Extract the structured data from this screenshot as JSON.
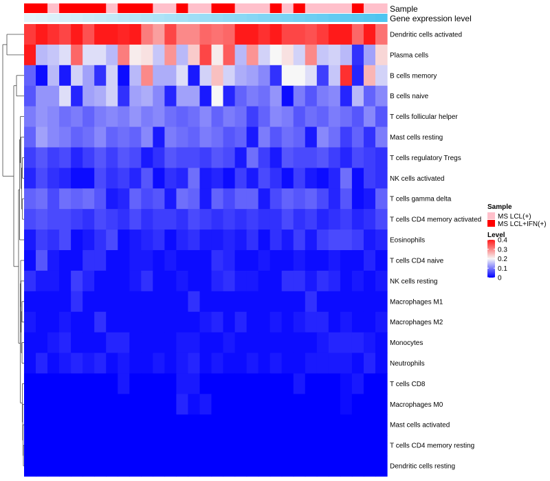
{
  "chart_data": {
    "type": "heatmap",
    "title": "",
    "n_columns": 31,
    "rows": [
      "Dendritic cells activated",
      "Plasma cells",
      "B cells memory",
      "B cells naive",
      "T cells follicular helper",
      "Mast cells resting",
      "T cells regulatory  Tregs",
      "NK cells activated",
      "T cells gamma delta",
      "T cells CD4 memory activated",
      "Eosinophils",
      "T cells CD4 naive",
      "NK cells resting",
      "Macrophages M1",
      "Macrophages M2",
      "Monocytes",
      "Neutrophils",
      "T cells CD8",
      "Macrophages M0",
      "Mast cells activated",
      "T cells CD4 memory resting",
      "Dendritic cells resting"
    ],
    "values": [
      [
        0.37,
        0.42,
        0.38,
        0.36,
        0.4,
        0.35,
        0.41,
        0.4,
        0.39,
        0.42,
        0.31,
        0.28,
        0.36,
        0.3,
        0.3,
        0.33,
        0.32,
        0.33,
        0.4,
        0.41,
        0.38,
        0.41,
        0.36,
        0.36,
        0.35,
        0.37,
        0.4,
        0.41,
        0.33,
        0.42,
        0.32
      ],
      [
        0.4,
        0.15,
        0.16,
        0.18,
        0.33,
        0.18,
        0.18,
        0.15,
        0.31,
        0.21,
        0.22,
        0.16,
        0.29,
        0.15,
        0.24,
        0.36,
        0.21,
        0.34,
        0.15,
        0.29,
        0.17,
        0.2,
        0.22,
        0.17,
        0.3,
        0.16,
        0.17,
        0.15,
        0.04,
        0.13,
        0.23
      ],
      [
        0.08,
        0.01,
        0.15,
        0.02,
        0.17,
        0.13,
        0.04,
        0.17,
        0.01,
        0.15,
        0.3,
        0.14,
        0.14,
        0.18,
        0.02,
        0.17,
        0.25,
        0.17,
        0.14,
        0.13,
        0.11,
        0.04,
        0.2,
        0.2,
        0.18,
        0.05,
        0.16,
        0.38,
        0.03,
        0.26,
        0.17
      ],
      [
        0.07,
        0.12,
        0.12,
        0.18,
        0.03,
        0.13,
        0.14,
        0.17,
        0.04,
        0.13,
        0.14,
        0.11,
        0.03,
        0.13,
        0.13,
        0.02,
        0.2,
        0.03,
        0.08,
        0.1,
        0.09,
        0.12,
        0.01,
        0.1,
        0.07,
        0.1,
        0.11,
        0.03,
        0.15,
        0.08,
        0.11
      ],
      [
        0.1,
        0.12,
        0.11,
        0.09,
        0.1,
        0.08,
        0.1,
        0.11,
        0.1,
        0.12,
        0.1,
        0.11,
        0.09,
        0.08,
        0.09,
        0.11,
        0.08,
        0.1,
        0.09,
        0.05,
        0.08,
        0.11,
        0.1,
        0.07,
        0.09,
        0.08,
        0.1,
        0.09,
        0.07,
        0.11,
        0.07
      ],
      [
        0.08,
        0.13,
        0.11,
        0.1,
        0.08,
        0.09,
        0.11,
        0.08,
        0.09,
        0.08,
        0.11,
        0.02,
        0.1,
        0.09,
        0.08,
        0.1,
        0.09,
        0.07,
        0.08,
        0.02,
        0.1,
        0.07,
        0.09,
        0.08,
        0.02,
        0.11,
        0.09,
        0.05,
        0.08,
        0.04,
        0.1
      ],
      [
        0.05,
        0.07,
        0.05,
        0.06,
        0.03,
        0.05,
        0.07,
        0.05,
        0.07,
        0.06,
        0.02,
        0.04,
        0.07,
        0.06,
        0.06,
        0.05,
        0.07,
        0.06,
        0.02,
        0.09,
        0.05,
        0.02,
        0.07,
        0.06,
        0.06,
        0.07,
        0.05,
        0.03,
        0.06,
        0.05,
        0.04
      ],
      [
        0.03,
        0.06,
        0.04,
        0.03,
        0.01,
        0.01,
        0.06,
        0.04,
        0.05,
        0.03,
        0.07,
        0.01,
        0.04,
        0.03,
        0.09,
        0.02,
        0.03,
        0.01,
        0.05,
        0.02,
        0.06,
        0.04,
        0.01,
        0.05,
        0.02,
        0.01,
        0.03,
        0.09,
        0.01,
        0.05,
        0.04
      ],
      [
        0.08,
        0.09,
        0.06,
        0.09,
        0.08,
        0.09,
        0.07,
        0.02,
        0.03,
        0.08,
        0.06,
        0.07,
        0.02,
        0.09,
        0.08,
        0.02,
        0.08,
        0.06,
        0.08,
        0.08,
        0.02,
        0.06,
        0.08,
        0.07,
        0.08,
        0.06,
        0.03,
        0.07,
        0.01,
        0.02,
        0.08
      ],
      [
        0.06,
        0.07,
        0.06,
        0.06,
        0.05,
        0.04,
        0.06,
        0.05,
        0.04,
        0.06,
        0.04,
        0.05,
        0.05,
        0.04,
        0.06,
        0.05,
        0.04,
        0.05,
        0.04,
        0.05,
        0.04,
        0.04,
        0.06,
        0.04,
        0.05,
        0.03,
        0.04,
        0.05,
        0.03,
        0.04,
        0.06
      ],
      [
        0.02,
        0.05,
        0.04,
        0.06,
        0.01,
        0.02,
        0.04,
        0.06,
        0.01,
        0.02,
        0.03,
        0.04,
        0.01,
        0.03,
        0.04,
        0.02,
        0.02,
        0.03,
        0.02,
        0.04,
        0.01,
        0.04,
        0.02,
        0.05,
        0.02,
        0.05,
        0.06,
        0.06,
        0.05,
        0.02,
        0.03
      ],
      [
        0.01,
        0.07,
        0.02,
        0.01,
        0.01,
        0.04,
        0.04,
        0.01,
        0.01,
        0.02,
        0.02,
        0.01,
        0.02,
        0.01,
        0.01,
        0.01,
        0.04,
        0.03,
        0.01,
        0.01,
        0.02,
        0.01,
        0.01,
        0.02,
        0.01,
        0.01,
        0.02,
        0.01,
        0.01,
        0.03,
        0.01
      ],
      [
        0.04,
        0.02,
        0.02,
        0.01,
        0.05,
        0.03,
        0.01,
        0.01,
        0.01,
        0.02,
        0.04,
        0.01,
        0.01,
        0.02,
        0.01,
        0.01,
        0.03,
        0.04,
        0.02,
        0.02,
        0.01,
        0.01,
        0.04,
        0.04,
        0.02,
        0.04,
        0.03,
        0.01,
        0.02,
        0.01,
        0.02
      ],
      [
        0.01,
        0.01,
        0.01,
        0.01,
        0.04,
        0.01,
        0.01,
        0.01,
        0.01,
        0.01,
        0.01,
        0.01,
        0.01,
        0.01,
        0.04,
        0.01,
        0.01,
        0.01,
        0.01,
        0.01,
        0.01,
        0.01,
        0.01,
        0.01,
        0.04,
        0.01,
        0.01,
        0.01,
        0.01,
        0.01,
        0.01
      ],
      [
        0.02,
        0.01,
        0.01,
        0.02,
        0.01,
        0.01,
        0.04,
        0.01,
        0.01,
        0.01,
        0.01,
        0.01,
        0.01,
        0.01,
        0.01,
        0.02,
        0.03,
        0.01,
        0.03,
        0.01,
        0.01,
        0.02,
        0.01,
        0.02,
        0.03,
        0.03,
        0.01,
        0.02,
        0.01,
        0.01,
        0.02
      ],
      [
        0.01,
        0.01,
        0.02,
        0.03,
        0.01,
        0.01,
        0.01,
        0.03,
        0.03,
        0.01,
        0.01,
        0.01,
        0.01,
        0.02,
        0.02,
        0.01,
        0.01,
        0.02,
        0.01,
        0.01,
        0.01,
        0.01,
        0.01,
        0.01,
        0.01,
        0.02,
        0.03,
        0.03,
        0.03,
        0.02,
        0.01
      ],
      [
        0.01,
        0.03,
        0.01,
        0.02,
        0.03,
        0.02,
        0.03,
        0.01,
        0.02,
        0.01,
        0.01,
        0.02,
        0.01,
        0.02,
        0.03,
        0.01,
        0.02,
        0.01,
        0.01,
        0.02,
        0.01,
        0.02,
        0.01,
        0.01,
        0.02,
        0.02,
        0.02,
        0.02,
        0.01,
        0.03,
        0.01
      ],
      [
        0.0,
        0.0,
        0.0,
        0.0,
        0.0,
        0.0,
        0.0,
        0.0,
        0.02,
        0.0,
        0.0,
        0.0,
        0.0,
        0.02,
        0.02,
        0.0,
        0.0,
        0.0,
        0.0,
        0.0,
        0.0,
        0.0,
        0.0,
        0.02,
        0.0,
        0.0,
        0.0,
        0.01,
        0.02,
        0.0,
        0.0
      ],
      [
        0.0,
        0.0,
        0.0,
        0.0,
        0.0,
        0.0,
        0.0,
        0.0,
        0.0,
        0.0,
        0.0,
        0.0,
        0.0,
        0.03,
        0.01,
        0.02,
        0.0,
        0.0,
        0.0,
        0.0,
        0.0,
        0.0,
        0.0,
        0.0,
        0.0,
        0.0,
        0.0,
        0.01,
        0.0,
        0.0,
        0.0
      ],
      [
        0.0,
        0.0,
        0.0,
        0.0,
        0.0,
        0.0,
        0.0,
        0.0,
        0.0,
        0.0,
        0.0,
        0.0,
        0.0,
        0.0,
        0.0,
        0.0,
        0.0,
        0.0,
        0.0,
        0.0,
        0.0,
        0.0,
        0.0,
        0.0,
        0.0,
        0.0,
        0.0,
        0.0,
        0.0,
        0.0,
        0.0
      ],
      [
        0.0,
        0.0,
        0.0,
        0.0,
        0.0,
        0.0,
        0.0,
        0.0,
        0.0,
        0.0,
        0.0,
        0.0,
        0.0,
        0.0,
        0.0,
        0.0,
        0.0,
        0.0,
        0.0,
        0.0,
        0.0,
        0.0,
        0.0,
        0.0,
        0.0,
        0.0,
        0.0,
        0.0,
        0.0,
        0.0,
        0.0
      ],
      [
        0.0,
        0.0,
        0.0,
        0.0,
        0.0,
        0.0,
        0.0,
        0.0,
        0.0,
        0.0,
        0.0,
        0.0,
        0.0,
        0.0,
        0.0,
        0.0,
        0.0,
        0.0,
        0.0,
        0.0,
        0.0,
        0.0,
        0.0,
        0.0,
        0.0,
        0.0,
        0.0,
        0.0,
        0.0,
        0.0,
        0.0
      ]
    ],
    "column_annotations": [
      {
        "name": "Sample",
        "values": [
          "MS LCL+IFN(+)",
          "MS LCL+IFN(+)",
          "MS LCL(+)",
          "MS LCL+IFN(+)",
          "MS LCL+IFN(+)",
          "MS LCL+IFN(+)",
          "MS LCL+IFN(+)",
          "MS LCL(+)",
          "MS LCL+IFN(+)",
          "MS LCL+IFN(+)",
          "MS LCL+IFN(+)",
          "MS LCL(+)",
          "MS LCL(+)",
          "MS LCL+IFN(+)",
          "MS LCL(+)",
          "MS LCL(+)",
          "MS LCL+IFN(+)",
          "MS LCL+IFN(+)",
          "MS LCL(+)",
          "MS LCL(+)",
          "MS LCL(+)",
          "MS LCL+IFN(+)",
          "MS LCL(+)",
          "MS LCL+IFN(+)",
          "MS LCL(+)",
          "MS LCL(+)",
          "MS LCL(+)",
          "MS LCL(+)",
          "MS LCL+IFN(+)",
          "MS LCL(+)",
          "MS LCL(+)"
        ]
      },
      {
        "name": "Gene expression level",
        "values": [
          0.0,
          0.03,
          0.07,
          0.1,
          0.13,
          0.17,
          0.2,
          0.23,
          0.27,
          0.3,
          0.33,
          0.37,
          0.4,
          0.43,
          0.47,
          0.5,
          0.53,
          0.57,
          0.6,
          0.63,
          0.67,
          0.7,
          0.73,
          0.77,
          0.8,
          0.83,
          0.87,
          0.9,
          0.93,
          0.97,
          1.0
        ]
      }
    ],
    "row_dendrogram": true,
    "color_scale": {
      "min": 0,
      "mid": 0.2,
      "max": 0.4,
      "low_color": "#0000ff",
      "mid_color": "#f7f7f7",
      "high_color": "#ff1a1a"
    },
    "legends": {
      "sample": {
        "title": "Sample",
        "entries": [
          {
            "label": "MS LCL(+)",
            "color": "#ffc0cb"
          },
          {
            "label": "MS LCL+IFN(+)",
            "color": "#ff0000"
          }
        ]
      },
      "level": {
        "title": "Level",
        "ticks": [
          "0.4",
          "0.3",
          "0.2",
          "0.1",
          "0"
        ],
        "tick_values": [
          0.4,
          0.3,
          0.2,
          0.1,
          0
        ]
      }
    }
  }
}
